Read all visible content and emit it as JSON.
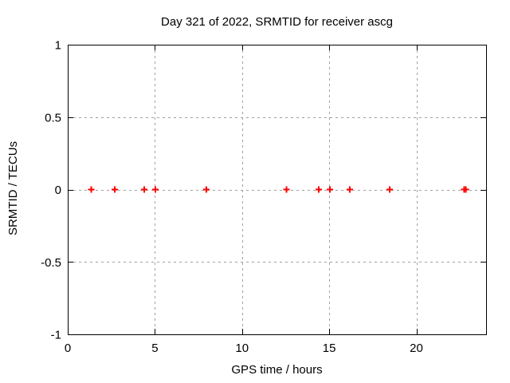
{
  "chart_data": {
    "type": "scatter",
    "title": "Day 321 of 2022, SRMTID for receiver ascg",
    "xlabel": "GPS time / hours",
    "ylabel": "SRMTID / TECUs",
    "xlim": [
      0,
      24
    ],
    "ylim": [
      -1,
      1
    ],
    "xticks": [
      0,
      5,
      10,
      15,
      20
    ],
    "xtick_labels": [
      "0",
      "5",
      "10",
      "15",
      "20"
    ],
    "yticks": [
      1,
      0.5,
      0,
      -0.5,
      -1
    ],
    "ytick_labels": [
      "1",
      "0.5",
      "0",
      "-0.5",
      "-1"
    ],
    "grid": true,
    "legend": "none",
    "marker": "plus",
    "colors": {
      "marker": "#ff0000",
      "grid": "#a0a0a0",
      "axis": "#000000",
      "background": "#ffffff",
      "text": "#000000"
    },
    "series": [
      {
        "x": [
          1.35,
          2.7,
          4.39,
          5.03,
          7.95,
          12.55,
          14.4,
          15.04,
          16.18,
          18.47,
          22.74,
          22.84
        ],
        "y": [
          0,
          0,
          0,
          0,
          0,
          0,
          0,
          0,
          0,
          0,
          0,
          0
        ]
      }
    ]
  }
}
